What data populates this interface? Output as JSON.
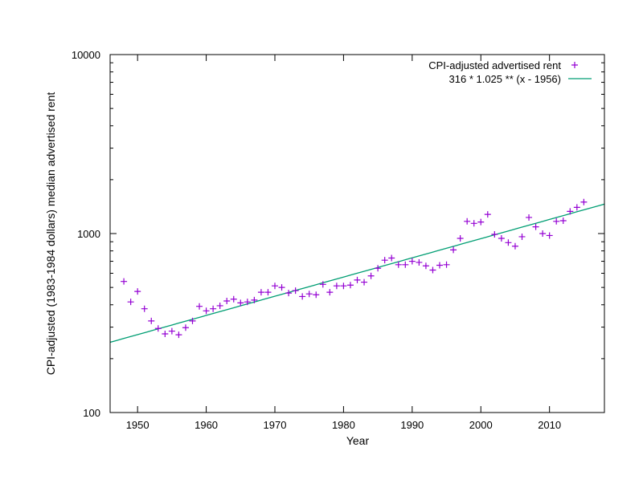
{
  "chart_data": {
    "type": "scatter",
    "title": "",
    "xlabel": "Year",
    "ylabel": "CPI-adjusted (1983-1984 dollars) median advertised rent",
    "xlim": [
      1946,
      2018
    ],
    "ylim": [
      100,
      10000
    ],
    "yscale": "log",
    "grid": false,
    "legend_position": "top-right",
    "x_ticks": [
      1950,
      1960,
      1970,
      1980,
      1990,
      2000,
      2010
    ],
    "x_tick_labels": [
      "1950",
      "1960",
      "1970",
      "1980",
      "1990",
      "2000",
      "2010"
    ],
    "y_ticks": [
      100,
      1000,
      10000
    ],
    "y_tick_labels": [
      "100",
      "1000",
      "10000"
    ],
    "series": [
      {
        "name": "CPI-adjusted advertised rent",
        "kind": "points",
        "marker": "plus",
        "color": "#9400d3",
        "x": [
          1948,
          1949,
          1950,
          1951,
          1952,
          1953,
          1954,
          1955,
          1956,
          1957,
          1958,
          1959,
          1960,
          1961,
          1962,
          1963,
          1964,
          1965,
          1966,
          1967,
          1968,
          1969,
          1970,
          1971,
          1972,
          1973,
          1974,
          1975,
          1976,
          1977,
          1978,
          1979,
          1980,
          1981,
          1982,
          1983,
          1984,
          1985,
          1986,
          1987,
          1988,
          1989,
          1990,
          1991,
          1992,
          1993,
          1994,
          1995,
          1996,
          1997,
          1998,
          1999,
          2000,
          2001,
          2002,
          2003,
          2004,
          2005,
          2006,
          2007,
          2008,
          2009,
          2010,
          2011,
          2012,
          2013,
          2014,
          2015
        ],
        "y": [
          540,
          415,
          475,
          380,
          325,
          295,
          275,
          285,
          272,
          298,
          325,
          392,
          370,
          380,
          395,
          420,
          430,
          410,
          415,
          425,
          470,
          470,
          510,
          500,
          465,
          480,
          445,
          460,
          455,
          520,
          470,
          510,
          510,
          515,
          550,
          535,
          580,
          640,
          710,
          730,
          670,
          670,
          700,
          690,
          660,
          625,
          665,
          670,
          810,
          940,
          1170,
          1140,
          1160,
          1280,
          990,
          940,
          890,
          850,
          960,
          1230,
          1090,
          1000,
          975,
          1170,
          1180,
          1330,
          1400,
          1500
        ]
      },
      {
        "name": "316 * 1.025 ** (x - 1956)",
        "kind": "function",
        "base": 316,
        "rate": 1.025,
        "x0": 1956,
        "color": "#009e73"
      }
    ]
  }
}
